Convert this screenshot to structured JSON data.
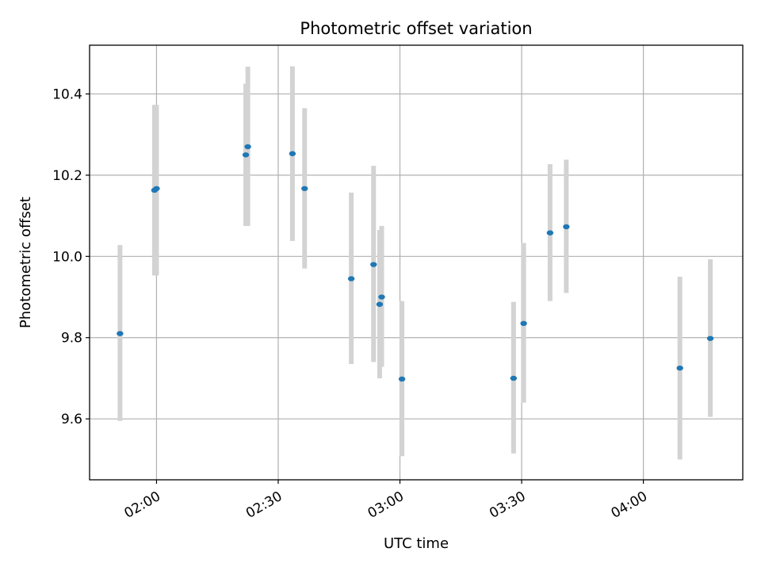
{
  "chart_data": {
    "type": "scatter",
    "title": "Photometric offset variation",
    "xlabel": "UTC time",
    "ylabel": "Photometric offset",
    "x_ticks": [
      "02:00",
      "02:30",
      "03:00",
      "03:30",
      "04:00"
    ],
    "y_ticks": [
      "9.6",
      "9.8",
      "10.0",
      "10.2",
      "10.4"
    ],
    "xlim": [
      "01:43:30",
      "04:24:30"
    ],
    "ylim": [
      9.45,
      10.52
    ],
    "grid": true,
    "point_color": "#1f77b4",
    "errorbar_color": "#d3d3d3",
    "points": [
      {
        "time": "01:51:00",
        "y": 9.81,
        "ylo": 9.595,
        "yhi": 10.028
      },
      {
        "time": "01:59:30",
        "y": 10.163,
        "ylo": 9.953,
        "yhi": 10.373
      },
      {
        "time": "02:00:00",
        "y": 10.167,
        "ylo": 9.953,
        "yhi": 10.373
      },
      {
        "time": "02:22:00",
        "y": 10.25,
        "ylo": 10.075,
        "yhi": 10.425
      },
      {
        "time": "02:22:30",
        "y": 10.27,
        "ylo": 10.075,
        "yhi": 10.467
      },
      {
        "time": "02:33:30",
        "y": 10.253,
        "ylo": 10.038,
        "yhi": 10.468
      },
      {
        "time": "02:36:30",
        "y": 10.167,
        "ylo": 9.97,
        "yhi": 10.365
      },
      {
        "time": "02:48:00",
        "y": 9.945,
        "ylo": 9.735,
        "yhi": 10.157
      },
      {
        "time": "02:53:30",
        "y": 9.98,
        "ylo": 9.74,
        "yhi": 10.223
      },
      {
        "time": "02:55:00",
        "y": 9.882,
        "ylo": 9.7,
        "yhi": 10.065
      },
      {
        "time": "02:55:30",
        "y": 9.9,
        "ylo": 9.728,
        "yhi": 10.075
      },
      {
        "time": "03:00:30",
        "y": 9.698,
        "ylo": 9.508,
        "yhi": 9.89
      },
      {
        "time": "03:28:00",
        "y": 9.7,
        "ylo": 9.515,
        "yhi": 9.888
      },
      {
        "time": "03:30:30",
        "y": 9.835,
        "ylo": 9.64,
        "yhi": 10.033
      },
      {
        "time": "03:37:00",
        "y": 10.058,
        "ylo": 9.89,
        "yhi": 10.227
      },
      {
        "time": "03:41:00",
        "y": 10.073,
        "ylo": 9.91,
        "yhi": 10.238
      },
      {
        "time": "04:09:00",
        "y": 9.725,
        "ylo": 9.5,
        "yhi": 9.95
      },
      {
        "time": "04:16:30",
        "y": 9.798,
        "ylo": 9.605,
        "yhi": 9.993
      }
    ]
  }
}
